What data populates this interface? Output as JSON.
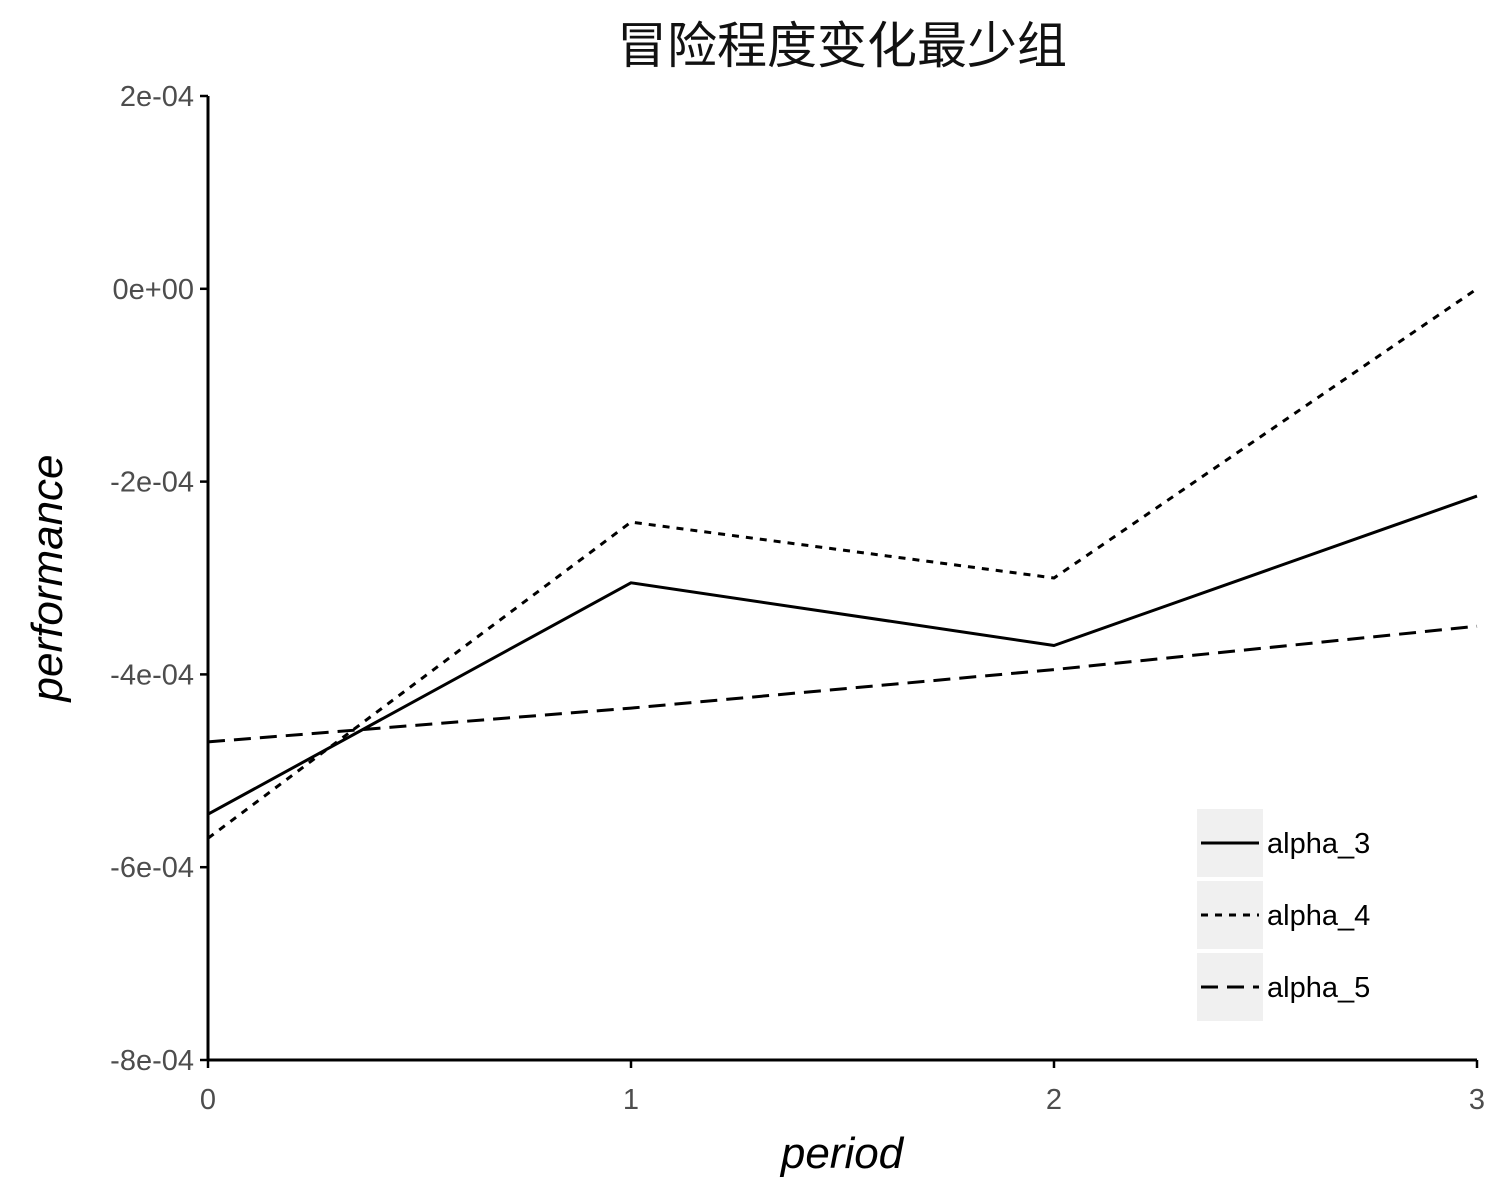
{
  "chart_data": {
    "type": "line",
    "title": "冒险程度变化最少组",
    "xlabel": "period",
    "ylabel": "performance",
    "x": [
      0,
      1,
      2,
      3
    ],
    "xlim": [
      0,
      3
    ],
    "ylim": [
      -0.0008,
      0.0002
    ],
    "xticks": [
      {
        "value": 0,
        "label": "0"
      },
      {
        "value": 1,
        "label": "1"
      },
      {
        "value": 2,
        "label": "2"
      },
      {
        "value": 3,
        "label": "3"
      }
    ],
    "yticks": [
      {
        "value": 0.0002,
        "label": "2e-04"
      },
      {
        "value": 0.0,
        "label": "0e+00"
      },
      {
        "value": -0.0002,
        "label": "-2e-04"
      },
      {
        "value": -0.0004,
        "label": "-4e-04"
      },
      {
        "value": -0.0006,
        "label": "-6e-04"
      },
      {
        "value": -0.0008,
        "label": "-8e-04"
      }
    ],
    "series": [
      {
        "name": "alpha_3",
        "linestyle": "solid",
        "values": [
          -0.000545,
          -0.000305,
          -0.00037,
          -0.000215
        ]
      },
      {
        "name": "alpha_4",
        "linestyle": "dotted",
        "values": [
          -0.00057,
          -0.000242,
          -0.0003,
          0.0
        ]
      },
      {
        "name": "alpha_5",
        "linestyle": "dashed",
        "values": [
          -0.00047,
          -0.000435,
          -0.000395,
          -0.00035
        ]
      }
    ],
    "grid": false,
    "legend_position": "bottom-right"
  }
}
